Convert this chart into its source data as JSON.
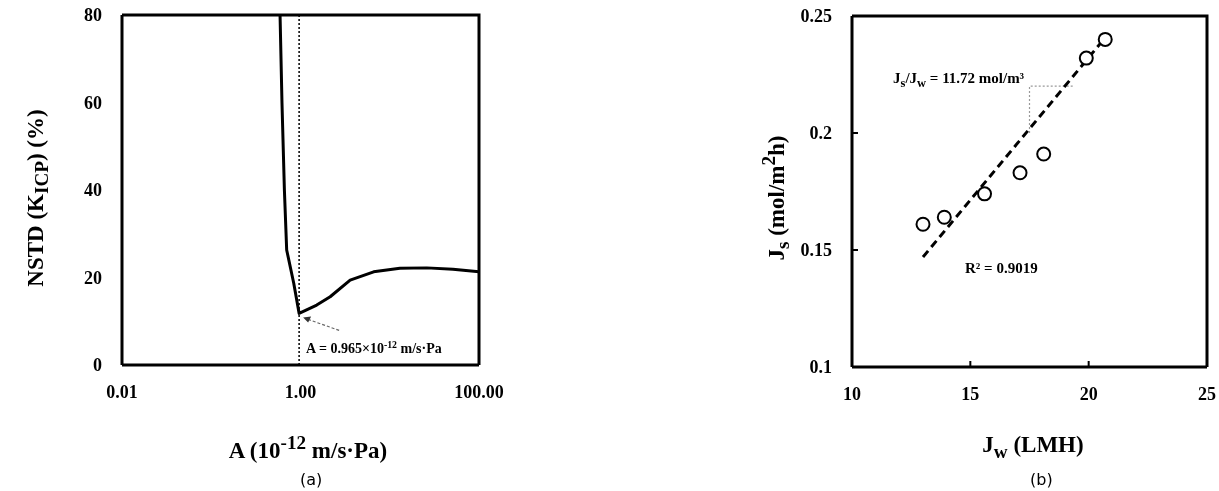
{
  "chart_data": [
    {
      "type": "line",
      "xlabel": "A (10$^{-12}$ m/s·Pa)",
      "ylabel": "NSTD (K$_{ICP}$) (%)",
      "log": "x",
      "x": [
        0.59,
        0.62,
        0.66,
        0.7,
        0.84,
        0.965,
        1.52,
        2.15,
        3.6,
        6.6,
        13,
        26,
        51,
        100
      ],
      "series": [
        {
          "color": "#000000",
          "values": [
            80,
            60,
            40,
            26.3,
            18.7,
            11.8,
            13.7,
            15.6,
            19.4,
            21.3,
            22.1,
            22.2,
            21.9,
            21.3
          ]
        }
      ],
      "xlim": [
        0.01,
        100
      ],
      "xticks": [
        0.01,
        {
          "value": 1,
          "label": "1.00"
        },
        {
          "value": 100,
          "label": "100.00"
        }
      ],
      "ylim": [
        0,
        80
      ],
      "yticks": [
        0,
        20,
        40,
        60,
        80
      ],
      "grid": false,
      "legend": false,
      "marker": "none",
      "line_style": "solid",
      "ref_lines": [
        {
          "axis": "x",
          "value": 0.965,
          "color": "#000000",
          "line_style": "dotted"
        }
      ],
      "annotations": [
        {
          "text": "A = 0.965×10$^{-12}$ m/s·Pa",
          "x": 0.965,
          "y": 11.8
        },
        "(a)"
      ]
    },
    {
      "type": "scatter",
      "xlabel": "J$_{w}$ (LMH)",
      "ylabel": "J$_{s}$ (mol/m$^{2}$h)",
      "xlim": [
        10,
        25
      ],
      "xticks": [
        10,
        15,
        20,
        25
      ],
      "ylim": [
        0.1,
        0.25
      ],
      "yticks": [
        0.1,
        0.15,
        0.2,
        0.25
      ],
      "grid": false,
      "legend": false,
      "series": [
        {
          "type": "scatter",
          "marker": "circle",
          "color": "#000000",
          "x": [
            13.0,
            13.9,
            15.6,
            17.1,
            18.1,
            19.9,
            20.7
          ],
          "values": [
            0.161,
            0.164,
            0.174,
            0.183,
            0.191,
            0.232,
            0.24
          ]
        },
        {
          "type": "line",
          "marker": "none",
          "line_style": "dashed",
          "color": "#000000",
          "x": [
            13.0,
            20.8
          ],
          "values": [
            0.147,
            0.242
          ]
        }
      ],
      "annotations": [
        "J$_{s}$/J$_{w}$ = 11.72 mol/m³",
        "R² = 0.9019",
        "(b)"
      ]
    }
  ]
}
